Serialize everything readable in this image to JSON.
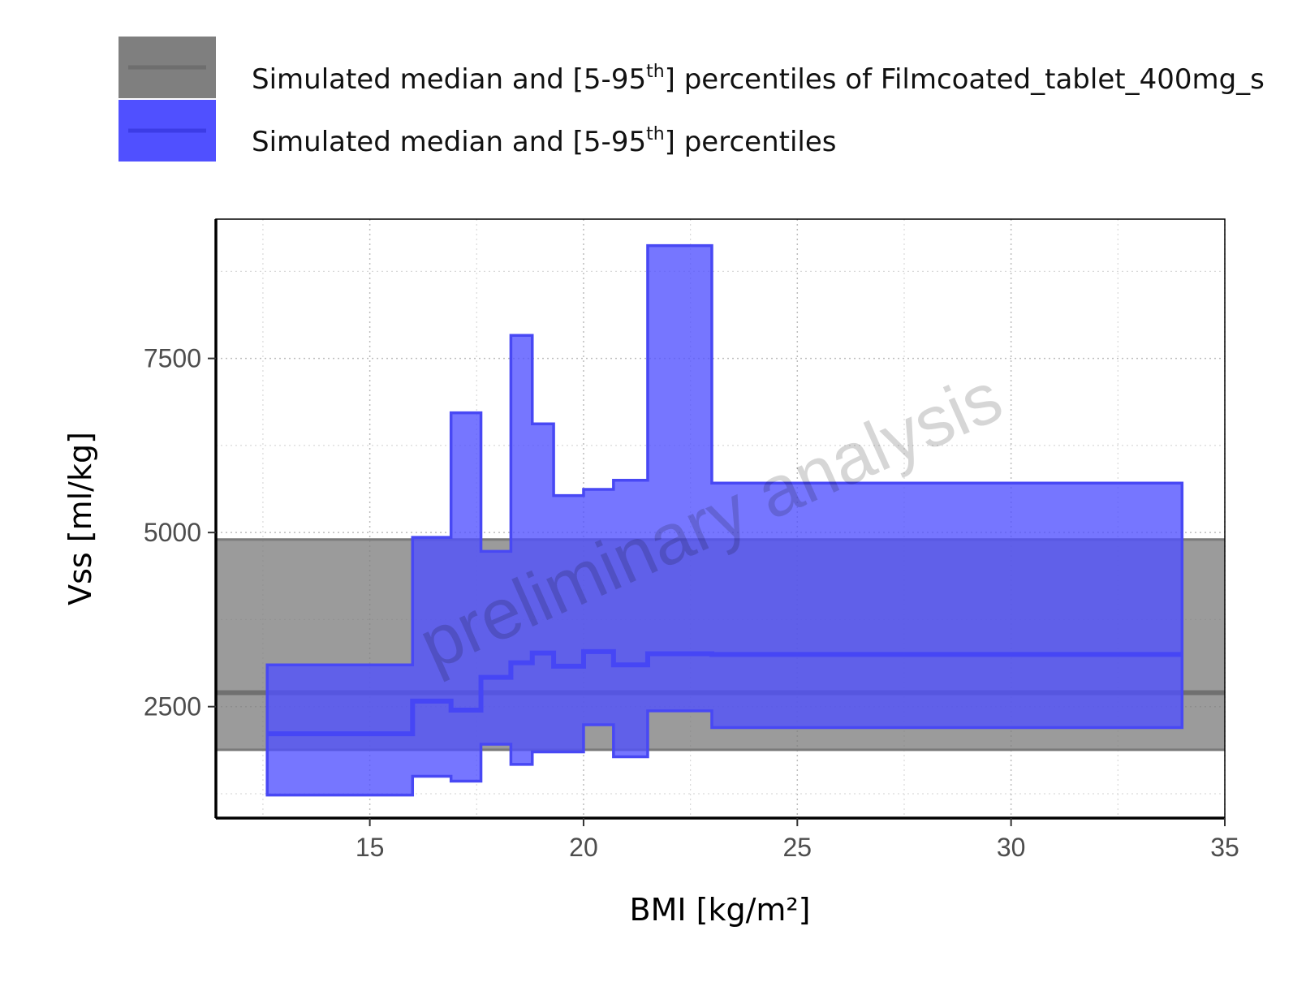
{
  "chart_data": {
    "type": "area",
    "xlabel": "BMI [kg/m²]",
    "ylabel": "Vss [ml/kg]",
    "xlim": [
      11.4,
      35
    ],
    "ylim": [
      900,
      9500
    ],
    "x_ticks": [
      15,
      20,
      25,
      30,
      35
    ],
    "y_ticks": [
      2500,
      5000,
      7500
    ],
    "grid": true,
    "legend_position": "top",
    "watermark": "preliminary analysis",
    "legend": [
      {
        "label_main": "Simulated median and [5-95",
        "label_sup": "th",
        "label_end": "] percentiles of Filmcoated_tablet_400mg_s",
        "color": "#7f7f7f"
      },
      {
        "label_main": "Simulated median and [5-95",
        "label_sup": "th",
        "label_end": "] percentiles",
        "color": "#5050ff"
      }
    ],
    "series": [
      {
        "name": "reference",
        "shape": "constant-band",
        "color": "#7f7f7f",
        "x_range": [
          11.4,
          35
        ],
        "median": 2700,
        "lower": 1880,
        "upper": 4900
      },
      {
        "name": "simulated",
        "shape": "step-band",
        "color": "#5050ff",
        "bins": [
          {
            "x0": 12.6,
            "x1": 16.0,
            "lower": 1230,
            "median": 2110,
            "upper": 3100
          },
          {
            "x0": 16.0,
            "x1": 16.9,
            "lower": 1500,
            "median": 2580,
            "upper": 4930
          },
          {
            "x0": 16.9,
            "x1": 17.6,
            "lower": 1430,
            "median": 2450,
            "upper": 6720
          },
          {
            "x0": 17.6,
            "x1": 18.3,
            "lower": 1960,
            "median": 2920,
            "upper": 4730
          },
          {
            "x0": 18.3,
            "x1": 18.8,
            "lower": 1670,
            "median": 3130,
            "upper": 7830
          },
          {
            "x0": 18.8,
            "x1": 19.3,
            "lower": 1850,
            "median": 3270,
            "upper": 6560
          },
          {
            "x0": 19.3,
            "x1": 20.0,
            "lower": 1850,
            "median": 3080,
            "upper": 5530
          },
          {
            "x0": 20.0,
            "x1": 20.7,
            "lower": 2240,
            "median": 3290,
            "upper": 5620
          },
          {
            "x0": 20.7,
            "x1": 21.5,
            "lower": 1780,
            "median": 3100,
            "upper": 5750
          },
          {
            "x0": 21.5,
            "x1": 23.0,
            "lower": 2440,
            "median": 3260,
            "upper": 9120
          },
          {
            "x0": 23.0,
            "x1": 34.0,
            "lower": 2200,
            "median": 3250,
            "upper": 5710
          }
        ]
      }
    ]
  }
}
